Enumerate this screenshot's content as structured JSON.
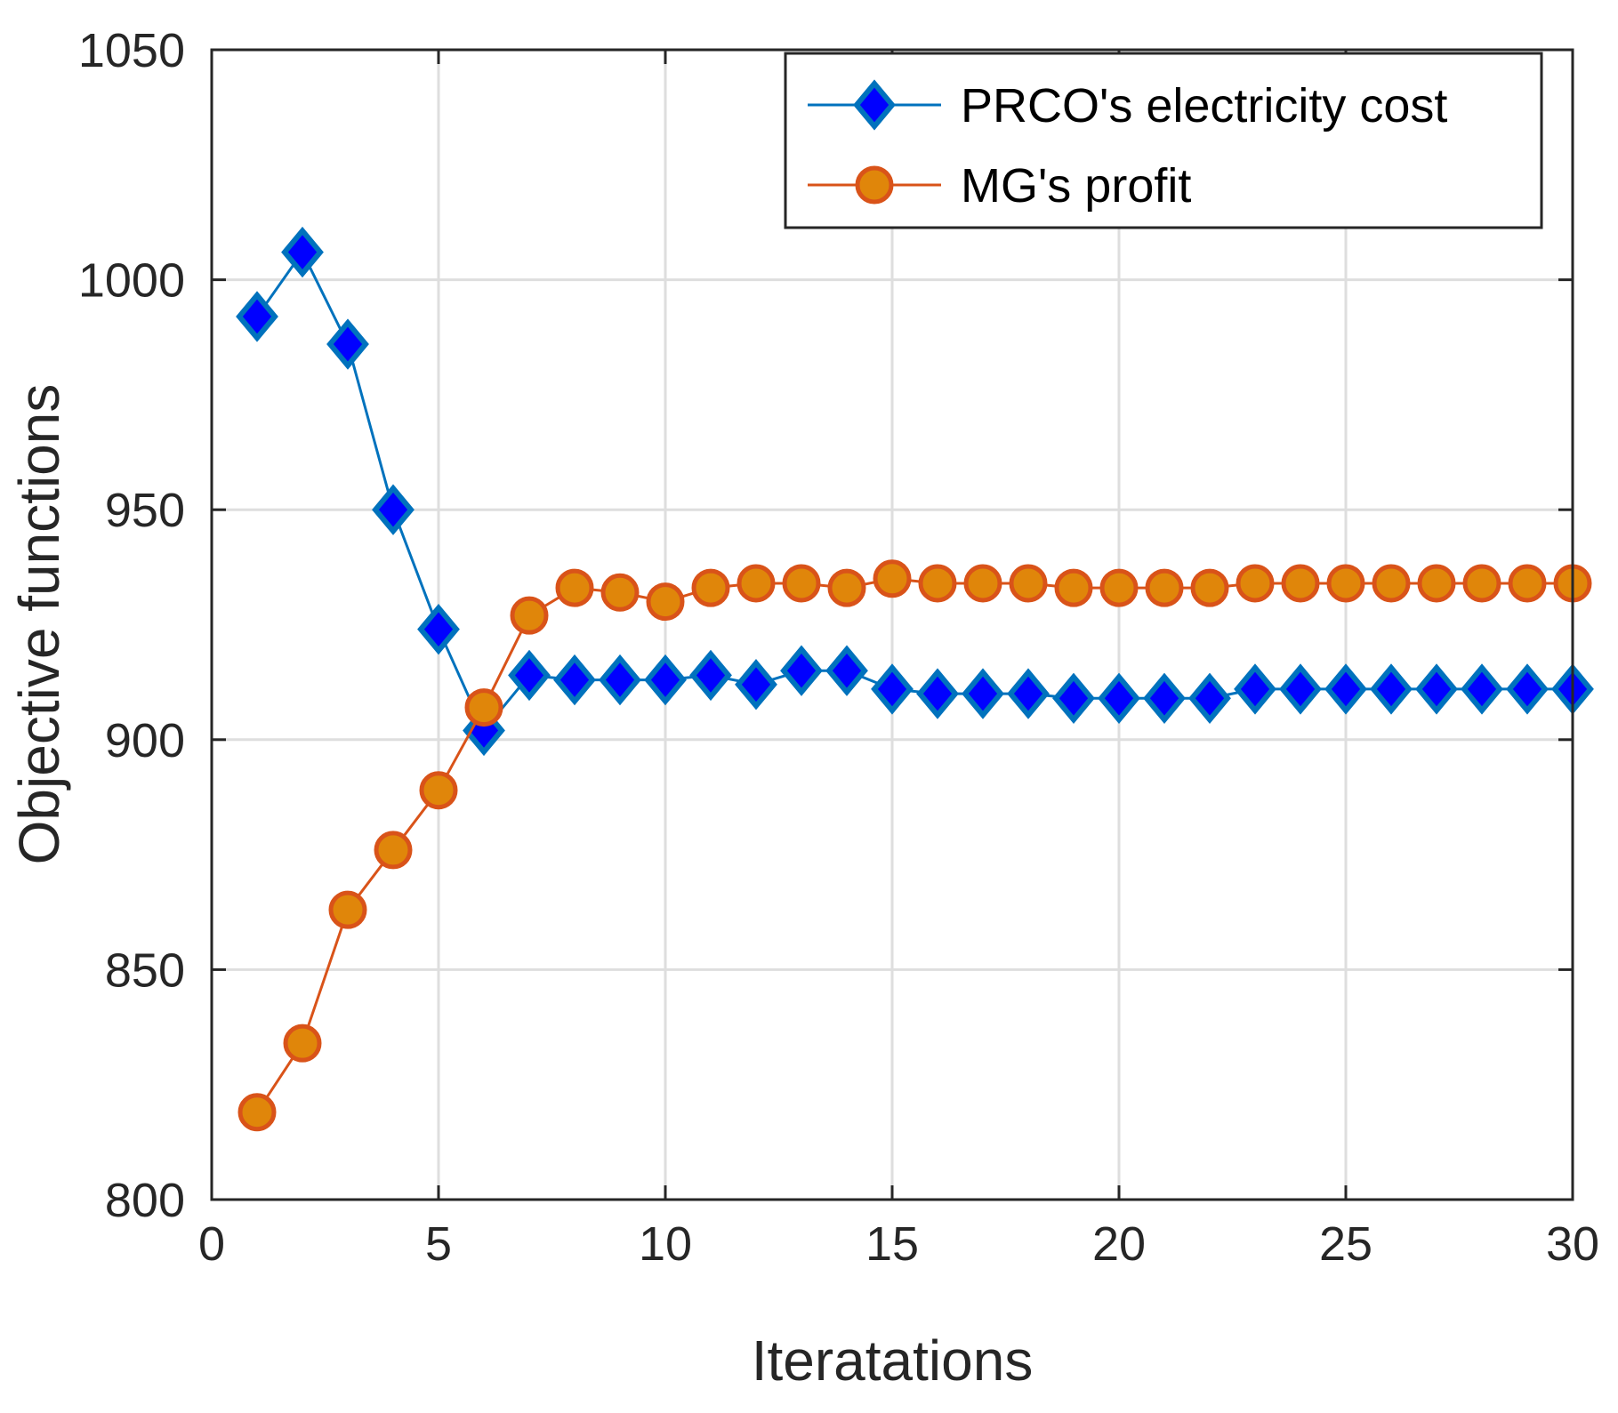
{
  "chart_data": {
    "type": "line",
    "title": "",
    "xlabel": "Iteratations",
    "ylabel": "Objective functions",
    "xlim": [
      0,
      30
    ],
    "ylim": [
      800,
      1050
    ],
    "xticks": [
      0,
      5,
      10,
      15,
      20,
      25,
      30
    ],
    "yticks": [
      800,
      850,
      900,
      950,
      1000,
      1050
    ],
    "xtick_labels": [
      "0",
      "5",
      "10",
      "15",
      "20",
      "25",
      "30"
    ],
    "ytick_labels": [
      "800",
      "850",
      "900",
      "950",
      "1000",
      "1050"
    ],
    "grid": true,
    "legend_position": "top-right",
    "x": [
      1,
      2,
      3,
      4,
      5,
      6,
      7,
      8,
      9,
      10,
      11,
      12,
      13,
      14,
      15,
      16,
      17,
      18,
      19,
      20,
      21,
      22,
      23,
      24,
      25,
      26,
      27,
      28,
      29,
      30
    ],
    "series": [
      {
        "name": "PRCO's electricity cost",
        "marker": "diamond",
        "line_color": "#0072BD",
        "marker_fill": "#0000FF",
        "marker_edge": "#0072BD",
        "values": [
          992,
          1006,
          986,
          950,
          924,
          902,
          914,
          913,
          913,
          913,
          914,
          912,
          915,
          915,
          911,
          910,
          910,
          910,
          909,
          909,
          909,
          909,
          911,
          911,
          911,
          911,
          911,
          911,
          911,
          911
        ]
      },
      {
        "name": "MG's profit",
        "marker": "circle",
        "line_color": "#D95319",
        "marker_fill": "#E0860A",
        "marker_edge": "#D95319",
        "values": [
          819,
          834,
          863,
          876,
          889,
          907,
          927,
          933,
          932,
          930,
          933,
          934,
          934,
          933,
          935,
          934,
          934,
          934,
          933,
          933,
          933,
          933,
          934,
          934,
          934,
          934,
          934,
          934,
          934,
          934
        ]
      }
    ]
  }
}
